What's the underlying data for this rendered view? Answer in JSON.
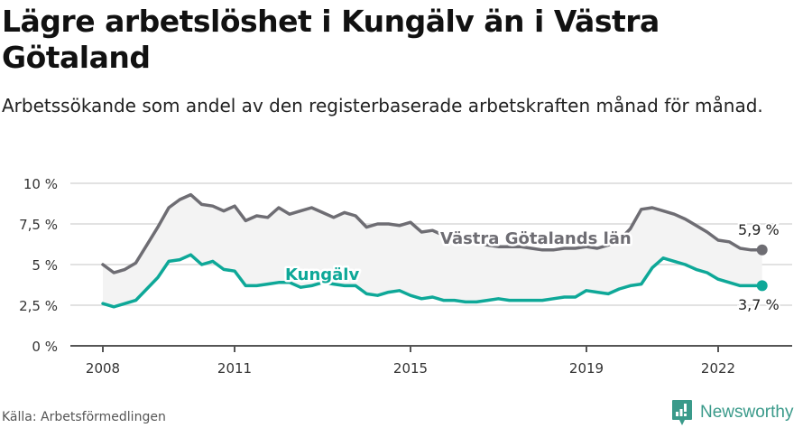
{
  "header": {
    "title": "Lägre arbetslöshet i Kungälv än i Västra Götaland",
    "subtitle": "Arbetssökande som andel av den registerbaserade arbetskraften månad för månad."
  },
  "footer": {
    "source": "Källa: Arbetsförmedlingen",
    "brand": "Newsworthy"
  },
  "colors": {
    "vastra_gotaland": "#6e6d73",
    "kungalv": "#0ea898",
    "band_fill": "#f3f3f3",
    "grid": "#e2e2e2",
    "axis": "#555555"
  },
  "chart_data": {
    "type": "line",
    "title": "Lägre arbetslöshet i Kungälv än i Västra Götaland",
    "subtitle": "Arbetssökande som andel av den registerbaserade arbetskraften månad för månad.",
    "xlabel": "",
    "ylabel": "",
    "ylim": [
      0,
      10
    ],
    "yticks": [
      "0 %",
      "2,5 %",
      "5 %",
      "7,5 %",
      "10 %"
    ],
    "xticks": [
      "2008",
      "2011",
      "2015",
      "2019",
      "2022"
    ],
    "grid": true,
    "legend": "inline labels",
    "x": [
      2008.0,
      2008.25,
      2008.5,
      2008.75,
      2009.0,
      2009.25,
      2009.5,
      2009.75,
      2010.0,
      2010.25,
      2010.5,
      2010.75,
      2011.0,
      2011.25,
      2011.5,
      2011.75,
      2012.0,
      2012.25,
      2012.5,
      2012.75,
      2013.0,
      2013.25,
      2013.5,
      2013.75,
      2014.0,
      2014.25,
      2014.5,
      2014.75,
      2015.0,
      2015.25,
      2015.5,
      2015.75,
      2016.0,
      2016.25,
      2016.5,
      2016.75,
      2017.0,
      2017.25,
      2017.5,
      2017.75,
      2018.0,
      2018.25,
      2018.5,
      2018.75,
      2019.0,
      2019.25,
      2019.5,
      2019.75,
      2020.0,
      2020.25,
      2020.5,
      2020.75,
      2021.0,
      2021.25,
      2021.5,
      2021.75,
      2022.0,
      2022.25,
      2022.5,
      2022.75,
      2023.0
    ],
    "series": [
      {
        "name": "Västra Götalands län",
        "end_label": "5,9 %",
        "values": [
          5.0,
          4.5,
          4.7,
          5.1,
          6.2,
          7.3,
          8.5,
          9.0,
          9.3,
          8.7,
          8.6,
          8.3,
          8.6,
          7.7,
          8.0,
          7.9,
          8.5,
          8.1,
          8.3,
          8.5,
          8.2,
          7.9,
          8.2,
          8.0,
          7.3,
          7.5,
          7.5,
          7.4,
          7.6,
          7.0,
          7.1,
          6.8,
          6.6,
          6.5,
          6.3,
          6.2,
          6.1,
          6.1,
          6.1,
          6.0,
          5.9,
          5.9,
          6.0,
          6.0,
          6.1,
          6.0,
          6.2,
          6.5,
          7.2,
          8.4,
          8.5,
          8.3,
          8.1,
          7.8,
          7.4,
          7.0,
          6.5,
          6.4,
          6.0,
          5.9,
          5.9
        ]
      },
      {
        "name": "Kungälv",
        "end_label": "3,7 %",
        "values": [
          2.6,
          2.4,
          2.6,
          2.8,
          3.5,
          4.2,
          5.2,
          5.3,
          5.6,
          5.0,
          5.2,
          4.7,
          4.6,
          3.7,
          3.7,
          3.8,
          3.9,
          3.9,
          3.6,
          3.7,
          3.9,
          3.8,
          3.7,
          3.7,
          3.2,
          3.1,
          3.3,
          3.4,
          3.1,
          2.9,
          3.0,
          2.8,
          2.8,
          2.7,
          2.7,
          2.8,
          2.9,
          2.8,
          2.8,
          2.8,
          2.8,
          2.9,
          3.0,
          3.0,
          3.4,
          3.3,
          3.2,
          3.5,
          3.7,
          3.8,
          4.8,
          5.4,
          5.2,
          5.0,
          4.7,
          4.5,
          4.1,
          3.9,
          3.7,
          3.7,
          3.7
        ]
      }
    ]
  },
  "annotations": {
    "vg_label": "Västra Götalands län",
    "kungalv_label": "Kungälv",
    "vg_end": "5,9 %",
    "kungalv_end": "3,7 %"
  }
}
